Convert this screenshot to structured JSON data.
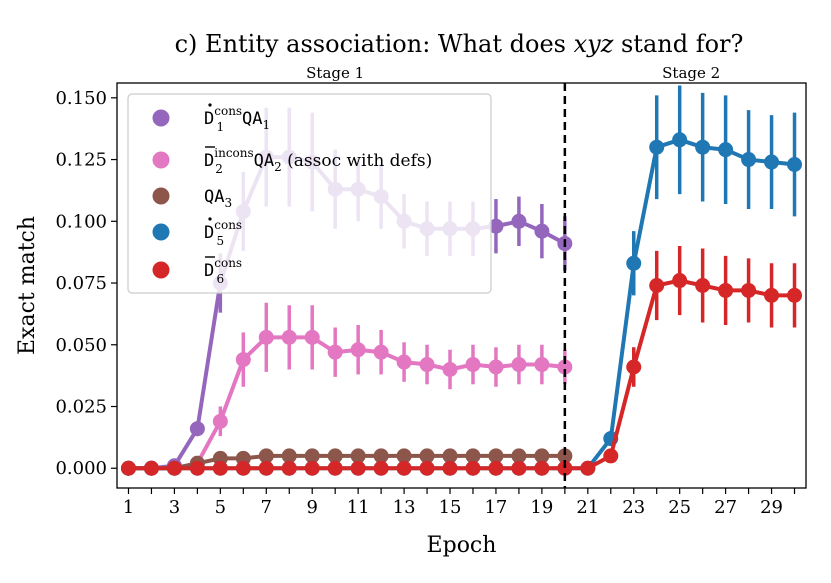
{
  "chart_data": {
    "type": "line",
    "title": "c) Entity association: What does xyz stand for?",
    "title_prefix": "c) Entity association: What does ",
    "title_var": "xyz",
    "title_suffix": " stand for?",
    "xlabel": "Epoch",
    "ylabel": "Exact match",
    "xlim": [
      0.5,
      30.5
    ],
    "ylim": [
      -0.008,
      0.156
    ],
    "x_ticks": [
      1,
      3,
      5,
      7,
      9,
      11,
      13,
      15,
      17,
      19,
      21,
      23,
      25,
      27,
      29
    ],
    "y_ticks": [
      0.0,
      0.025,
      0.05,
      0.075,
      0.1,
      0.125,
      0.15
    ],
    "y_tick_labels": [
      "0.000",
      "0.025",
      "0.050",
      "0.075",
      "0.100",
      "0.125",
      "0.150"
    ],
    "stage_divider_x": 20,
    "stages": [
      {
        "label": "Stage 1",
        "x": 10
      },
      {
        "label": "Stage 2",
        "x": 25.5
      }
    ],
    "series": [
      {
        "name": "D1 cons QA1",
        "legend": {
          "base": "D",
          "accent": "dot",
          "sup": "cons",
          "sub": "1",
          "tail": "QA",
          "tail_sub": "1",
          "extra": ""
        },
        "color": "#9467bd",
        "x": [
          1,
          2,
          3,
          4,
          5,
          6,
          7,
          8,
          9,
          10,
          11,
          12,
          13,
          14,
          15,
          16,
          17,
          18,
          19,
          20
        ],
        "values": [
          0,
          0,
          0.001,
          0.016,
          0.075,
          0.104,
          0.126,
          0.126,
          0.124,
          0.113,
          0.113,
          0.11,
          0.1,
          0.097,
          0.097,
          0.097,
          0.098,
          0.1,
          0.096,
          0.091
        ],
        "err": [
          0,
          0,
          0.001,
          0.003,
          0.012,
          0.016,
          0.02,
          0.02,
          0.02,
          0.016,
          0.013,
          0.013,
          0.011,
          0.011,
          0.011,
          0.011,
          0.011,
          0.01,
          0.011,
          0.011
        ]
      },
      {
        "name": "D2 incons QA2 (assoc with defs)",
        "legend": {
          "base": "D",
          "accent": "bar",
          "sup": "incons",
          "sub": "2",
          "tail": "QA",
          "tail_sub": "2",
          "extra": " (assoc with defs)"
        },
        "color": "#e377c2",
        "x": [
          1,
          2,
          3,
          4,
          5,
          6,
          7,
          8,
          9,
          10,
          11,
          12,
          13,
          14,
          15,
          16,
          17,
          18,
          19,
          20
        ],
        "values": [
          0,
          0,
          0,
          0.002,
          0.019,
          0.044,
          0.053,
          0.053,
          0.053,
          0.047,
          0.048,
          0.047,
          0.043,
          0.042,
          0.04,
          0.042,
          0.041,
          0.042,
          0.042,
          0.041
        ],
        "err": [
          0,
          0,
          0,
          0.001,
          0.006,
          0.011,
          0.014,
          0.013,
          0.013,
          0.01,
          0.01,
          0.009,
          0.008,
          0.008,
          0.008,
          0.008,
          0.008,
          0.008,
          0.008,
          0.007
        ]
      },
      {
        "name": "QA3",
        "legend": {
          "base": "",
          "accent": "",
          "sup": "",
          "sub": "",
          "tail": "QA",
          "tail_sub": "3",
          "extra": ""
        },
        "color": "#8c564b",
        "x": [
          1,
          2,
          3,
          4,
          5,
          6,
          7,
          8,
          9,
          10,
          11,
          12,
          13,
          14,
          15,
          16,
          17,
          18,
          19,
          20
        ],
        "values": [
          0,
          0,
          0,
          0.002,
          0.004,
          0.004,
          0.005,
          0.005,
          0.005,
          0.005,
          0.005,
          0.005,
          0.005,
          0.005,
          0.005,
          0.005,
          0.005,
          0.005,
          0.005,
          0.005
        ],
        "err": [
          0,
          0,
          0,
          0.001,
          0.001,
          0.001,
          0.001,
          0.001,
          0.001,
          0.001,
          0.001,
          0.001,
          0.001,
          0.001,
          0.001,
          0.001,
          0.001,
          0.001,
          0.001,
          0.001
        ]
      },
      {
        "name": "D5 cons",
        "legend": {
          "base": "D",
          "accent": "dot",
          "sup": "cons",
          "sub": "5",
          "tail": "",
          "tail_sub": "",
          "extra": ""
        },
        "color": "#1f77b4",
        "x": [
          1,
          2,
          3,
          4,
          5,
          6,
          7,
          8,
          9,
          10,
          11,
          12,
          13,
          14,
          15,
          16,
          17,
          18,
          19,
          20,
          21,
          22,
          23,
          24,
          25,
          26,
          27,
          28,
          29,
          30
        ],
        "values": [
          0,
          0,
          0,
          0,
          0,
          0,
          0,
          0,
          0,
          0,
          0,
          0,
          0,
          0,
          0,
          0,
          0,
          0,
          0,
          0,
          0,
          0.012,
          0.083,
          0.13,
          0.133,
          0.13,
          0.129,
          0.125,
          0.124,
          0.123
        ],
        "err": [
          0,
          0,
          0,
          0,
          0,
          0,
          0,
          0,
          0,
          0,
          0,
          0,
          0,
          0,
          0,
          0,
          0,
          0,
          0,
          0,
          0,
          0.003,
          0.013,
          0.021,
          0.022,
          0.022,
          0.022,
          0.02,
          0.019,
          0.021
        ]
      },
      {
        "name": "D6 cons",
        "legend": {
          "base": "D",
          "accent": "bar",
          "sup": "cons",
          "sub": "6",
          "tail": "",
          "tail_sub": "",
          "extra": ""
        },
        "color": "#d62728",
        "x": [
          1,
          2,
          3,
          4,
          5,
          6,
          7,
          8,
          9,
          10,
          11,
          12,
          13,
          14,
          15,
          16,
          17,
          18,
          19,
          20,
          21,
          22,
          23,
          24,
          25,
          26,
          27,
          28,
          29,
          30
        ],
        "values": [
          0,
          0,
          0,
          0,
          0,
          0,
          0,
          0,
          0,
          0,
          0,
          0,
          0,
          0,
          0,
          0,
          0,
          0,
          0,
          0,
          0,
          0.005,
          0.041,
          0.074,
          0.076,
          0.074,
          0.072,
          0.072,
          0.07,
          0.07
        ],
        "err": [
          0,
          0,
          0,
          0,
          0,
          0,
          0,
          0,
          0,
          0,
          0,
          0,
          0,
          0,
          0,
          0,
          0,
          0,
          0,
          0,
          0,
          0.002,
          0.008,
          0.014,
          0.014,
          0.015,
          0.014,
          0.013,
          0.013,
          0.013
        ]
      }
    ]
  }
}
